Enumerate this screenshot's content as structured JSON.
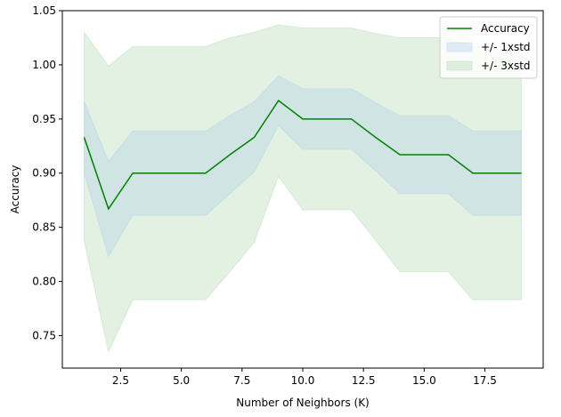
{
  "chart_data": {
    "type": "line",
    "title": "",
    "xlabel": "Number of Neighbors (K)",
    "ylabel": "Accuracy",
    "xlim": [
      0.1,
      19.9
    ],
    "ylim": [
      0.72,
      1.05
    ],
    "x_ticks": [
      2.5,
      5.0,
      7.5,
      10.0,
      12.5,
      15.0,
      17.5
    ],
    "x_tick_labels": [
      "2.5",
      "5.0",
      "7.5",
      "10.0",
      "12.5",
      "15.0",
      "17.5"
    ],
    "y_ticks": [
      0.75,
      0.8,
      0.85,
      0.9,
      0.95,
      1.0,
      1.05
    ],
    "y_tick_labels": [
      "0.75",
      "0.80",
      "0.85",
      "0.90",
      "0.95",
      "1.00",
      "1.05"
    ],
    "grid": false,
    "legend_position": "top-right",
    "x": [
      1,
      2,
      3,
      4,
      5,
      6,
      7,
      8,
      9,
      10,
      11,
      12,
      13,
      14,
      15,
      16,
      17,
      18,
      19
    ],
    "series": [
      {
        "name": "Accuracy",
        "kind": "line",
        "color": "#008000",
        "values": [
          0.933,
          0.867,
          0.9,
          0.9,
          0.9,
          0.9,
          0.917,
          0.933,
          0.967,
          0.95,
          0.95,
          0.95,
          0.933,
          0.917,
          0.917,
          0.917,
          0.9,
          0.9,
          0.9
        ]
      },
      {
        "name": "+/- 1xstd",
        "kind": "band",
        "color": "#a7c7e7",
        "opacity": 0.3,
        "lower": [
          0.9,
          0.823,
          0.861,
          0.861,
          0.861,
          0.861,
          0.881,
          0.901,
          0.944,
          0.922,
          0.922,
          0.922,
          0.902,
          0.881,
          0.881,
          0.881,
          0.861,
          0.861,
          0.861
        ],
        "upper": [
          0.966,
          0.911,
          0.939,
          0.939,
          0.939,
          0.939,
          0.953,
          0.966,
          0.99,
          0.978,
          0.978,
          0.978,
          0.965,
          0.953,
          0.953,
          0.953,
          0.939,
          0.939,
          0.939
        ]
      },
      {
        "name": "+/- 3xstd",
        "kind": "band",
        "color": "#90c990",
        "opacity": 0.25,
        "lower": [
          0.837,
          0.735,
          0.783,
          0.783,
          0.783,
          0.783,
          0.809,
          0.836,
          0.897,
          0.866,
          0.866,
          0.866,
          0.838,
          0.809,
          0.809,
          0.809,
          0.783,
          0.783,
          0.783
        ],
        "upper": [
          1.03,
          0.999,
          1.017,
          1.017,
          1.017,
          1.017,
          1.025,
          1.03,
          1.037,
          1.034,
          1.034,
          1.034,
          1.029,
          1.025,
          1.025,
          1.025,
          1.017,
          1.017,
          1.017
        ]
      }
    ]
  }
}
